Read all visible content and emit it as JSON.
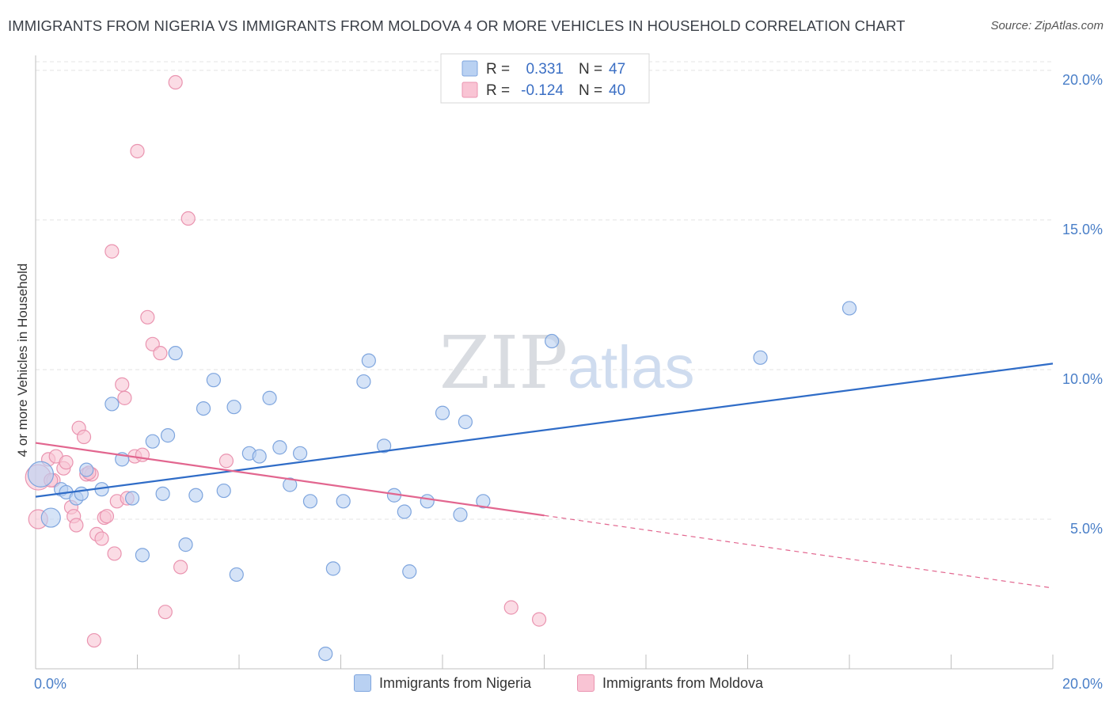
{
  "title": "IMMIGRANTS FROM NIGERIA VS IMMIGRANTS FROM MOLDOVA 4 OR MORE VEHICLES IN HOUSEHOLD CORRELATION CHART",
  "source": "Source: ZipAtlas.com",
  "watermark": {
    "zip": "ZIP",
    "atlas": "atlas"
  },
  "colors": {
    "nigeria_fill": "#b9d1f2",
    "nigeria_stroke": "#7ea5de",
    "nigeria_line": "#2f6cc7",
    "moldova_fill": "#f9c4d4",
    "moldova_stroke": "#ea94b0",
    "moldova_line": "#e2668f",
    "tick_label": "#4a7fc8"
  },
  "stats_legend": {
    "r_label": "R =",
    "n_label": "N =",
    "rows": [
      {
        "series": "nigeria",
        "r": "0.331",
        "n": "47"
      },
      {
        "series": "moldova",
        "r": "-0.124",
        "n": "40"
      }
    ]
  },
  "chart_data": {
    "type": "scatter",
    "title": "IMMIGRANTS FROM NIGERIA VS IMMIGRANTS FROM MOLDOVA 4 OR MORE VEHICLES IN HOUSEHOLD CORRELATION CHART",
    "xlabel": "",
    "ylabel": "4 or more Vehicles in Household",
    "xlim": [
      0,
      20
    ],
    "ylim": [
      0,
      20.5
    ],
    "x_tick_labels": [
      "0.0%",
      "20.0%"
    ],
    "y_ticks": [
      5,
      10,
      15,
      20
    ],
    "y_tick_labels": [
      "5.0%",
      "10.0%",
      "15.0%",
      "20.0%"
    ],
    "grid": true,
    "series": [
      {
        "name": "Immigrants from Nigeria",
        "r": 0.331,
        "n": 47,
        "trend": {
          "x": [
            0,
            20
          ],
          "y": [
            5.75,
            10.2
          ],
          "dashed_from": null
        },
        "points": [
          {
            "x": 0.1,
            "y": 6.5,
            "s": "l"
          },
          {
            "x": 0.3,
            "y": 5.05,
            "s": "m"
          },
          {
            "x": 0.5,
            "y": 6.0
          },
          {
            "x": 0.6,
            "y": 5.9
          },
          {
            "x": 0.8,
            "y": 5.7
          },
          {
            "x": 1.0,
            "y": 6.65
          },
          {
            "x": 1.3,
            "y": 6.0
          },
          {
            "x": 1.5,
            "y": 8.85
          },
          {
            "x": 1.7,
            "y": 7.0
          },
          {
            "x": 1.9,
            "y": 5.7
          },
          {
            "x": 2.1,
            "y": 3.8
          },
          {
            "x": 2.3,
            "y": 7.6
          },
          {
            "x": 2.5,
            "y": 5.85
          },
          {
            "x": 2.6,
            "y": 7.8
          },
          {
            "x": 2.75,
            "y": 10.55
          },
          {
            "x": 2.95,
            "y": 4.15
          },
          {
            "x": 3.15,
            "y": 5.8
          },
          {
            "x": 3.3,
            "y": 8.7
          },
          {
            "x": 3.5,
            "y": 9.65
          },
          {
            "x": 3.7,
            "y": 5.95
          },
          {
            "x": 3.9,
            "y": 8.75
          },
          {
            "x": 3.95,
            "y": 3.15
          },
          {
            "x": 4.2,
            "y": 7.2
          },
          {
            "x": 4.4,
            "y": 7.1
          },
          {
            "x": 4.6,
            "y": 9.05
          },
          {
            "x": 4.8,
            "y": 7.4
          },
          {
            "x": 5.0,
            "y": 6.15
          },
          {
            "x": 5.2,
            "y": 7.2
          },
          {
            "x": 5.4,
            "y": 5.6
          },
          {
            "x": 5.7,
            "y": 0.5
          },
          {
            "x": 5.85,
            "y": 3.35
          },
          {
            "x": 6.05,
            "y": 5.6
          },
          {
            "x": 6.45,
            "y": 9.6
          },
          {
            "x": 6.55,
            "y": 10.3
          },
          {
            "x": 6.85,
            "y": 7.45
          },
          {
            "x": 7.05,
            "y": 5.8
          },
          {
            "x": 7.25,
            "y": 5.25
          },
          {
            "x": 7.35,
            "y": 3.25
          },
          {
            "x": 7.7,
            "y": 5.6
          },
          {
            "x": 8.0,
            "y": 8.55
          },
          {
            "x": 8.35,
            "y": 5.15
          },
          {
            "x": 8.45,
            "y": 8.25
          },
          {
            "x": 8.8,
            "y": 5.6
          },
          {
            "x": 10.15,
            "y": 10.95
          },
          {
            "x": 14.25,
            "y": 10.4
          },
          {
            "x": 16.0,
            "y": 12.05
          },
          {
            "x": 0.9,
            "y": 5.85
          }
        ]
      },
      {
        "name": "Immigrants from Moldova",
        "r": -0.124,
        "n": 40,
        "trend": {
          "x": [
            0,
            20
          ],
          "y": [
            7.55,
            2.7
          ],
          "solid_until": 10.0
        },
        "points": [
          {
            "x": 0.05,
            "y": 6.4,
            "s": "l"
          },
          {
            "x": 0.05,
            "y": 5.0,
            "s": "m"
          },
          {
            "x": 0.25,
            "y": 7.0
          },
          {
            "x": 0.35,
            "y": 6.3
          },
          {
            "x": 0.4,
            "y": 7.1
          },
          {
            "x": 0.55,
            "y": 6.7
          },
          {
            "x": 0.6,
            "y": 6.9
          },
          {
            "x": 0.7,
            "y": 5.4
          },
          {
            "x": 0.75,
            "y": 5.1
          },
          {
            "x": 0.8,
            "y": 4.8
          },
          {
            "x": 0.85,
            "y": 8.05
          },
          {
            "x": 0.95,
            "y": 7.75
          },
          {
            "x": 1.0,
            "y": 6.5
          },
          {
            "x": 1.1,
            "y": 6.5
          },
          {
            "x": 1.15,
            "y": 0.95
          },
          {
            "x": 1.2,
            "y": 4.5
          },
          {
            "x": 1.3,
            "y": 4.35
          },
          {
            "x": 1.35,
            "y": 5.05
          },
          {
            "x": 1.4,
            "y": 5.1
          },
          {
            "x": 1.5,
            "y": 13.95
          },
          {
            "x": 1.55,
            "y": 3.85
          },
          {
            "x": 1.6,
            "y": 5.6
          },
          {
            "x": 1.7,
            "y": 9.5
          },
          {
            "x": 1.75,
            "y": 9.05
          },
          {
            "x": 1.8,
            "y": 5.7
          },
          {
            "x": 1.95,
            "y": 7.1
          },
          {
            "x": 2.0,
            "y": 17.3
          },
          {
            "x": 2.1,
            "y": 7.15
          },
          {
            "x": 2.2,
            "y": 11.75
          },
          {
            "x": 2.3,
            "y": 10.85
          },
          {
            "x": 2.45,
            "y": 10.55
          },
          {
            "x": 2.55,
            "y": 1.9
          },
          {
            "x": 2.75,
            "y": 19.6
          },
          {
            "x": 2.85,
            "y": 3.4
          },
          {
            "x": 3.0,
            "y": 15.05
          },
          {
            "x": 3.75,
            "y": 6.95
          },
          {
            "x": 9.35,
            "y": 2.05
          },
          {
            "x": 9.9,
            "y": 1.65
          },
          {
            "x": 0.3,
            "y": 6.3
          },
          {
            "x": 1.05,
            "y": 6.55
          }
        ]
      }
    ]
  },
  "bottom_legend": [
    {
      "series": "nigeria",
      "label": "Immigrants from Nigeria"
    },
    {
      "series": "moldova",
      "label": "Immigrants from Moldova"
    }
  ]
}
